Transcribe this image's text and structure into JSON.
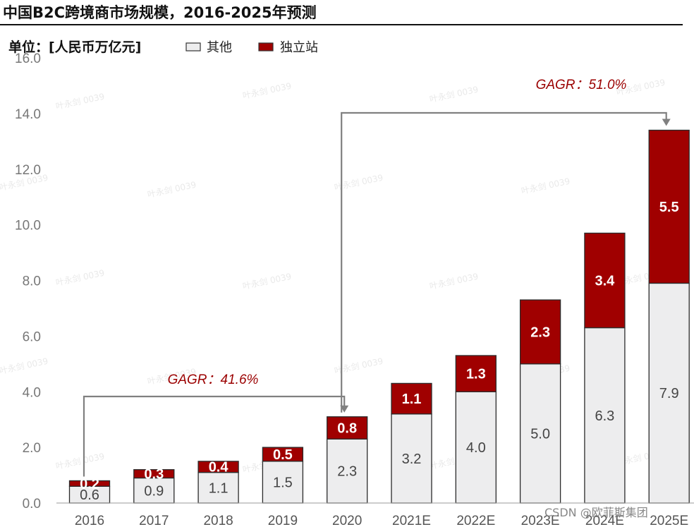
{
  "title": "中国B2C跨境商市场规模，2016-2025年预测",
  "unit_label": "单位：[人民币万亿元]",
  "colors": {
    "other": "#ededee",
    "independent": "#a00000",
    "arrow": "#808080",
    "cagr": "#9b0000"
  },
  "chart_data": {
    "type": "bar",
    "stacked": true,
    "title": "中国B2C跨境商市场规模，2016-2025年预测",
    "ylabel": "单位：[人民币万亿元]",
    "xlabel": "",
    "ylim": [
      0,
      16
    ],
    "yticks": [
      "0.0",
      "2.0",
      "4.0",
      "6.0",
      "8.0",
      "10.0",
      "12.0",
      "14.0",
      "16.0"
    ],
    "categories": [
      "2016",
      "2017",
      "2018",
      "2019",
      "2020",
      "2021E",
      "2022E",
      "2023E",
      "2024E",
      "2025E"
    ],
    "series": [
      {
        "name": "其他",
        "values": [
          0.6,
          0.9,
          1.1,
          1.5,
          2.3,
          3.2,
          4.0,
          5.0,
          6.3,
          7.9
        ],
        "labels": [
          "0.6",
          "0.9",
          "1.1",
          "1.5",
          "2.3",
          "3.2",
          "4.0",
          "5.0",
          "6.3",
          "7.9"
        ]
      },
      {
        "name": "独立站",
        "values": [
          0.2,
          0.3,
          0.4,
          0.5,
          0.8,
          1.1,
          1.3,
          2.3,
          3.4,
          5.5
        ],
        "labels": [
          "0.2",
          "0.3",
          "0.4",
          "0.5",
          "0.8",
          "1.1",
          "1.3",
          "2.3",
          "3.4",
          "5.5"
        ]
      }
    ],
    "legend": [
      "其他",
      "独立站"
    ],
    "legend_position": "top-left",
    "annotations": [
      {
        "text": "GAGR：41.6%",
        "from": "2016",
        "to": "2020"
      },
      {
        "text": "GAGR：51.0%",
        "from": "2020",
        "to": "2025E"
      }
    ]
  },
  "watermark": "叶永剑 0039",
  "credit": "CSDN @欧菲斯集团"
}
